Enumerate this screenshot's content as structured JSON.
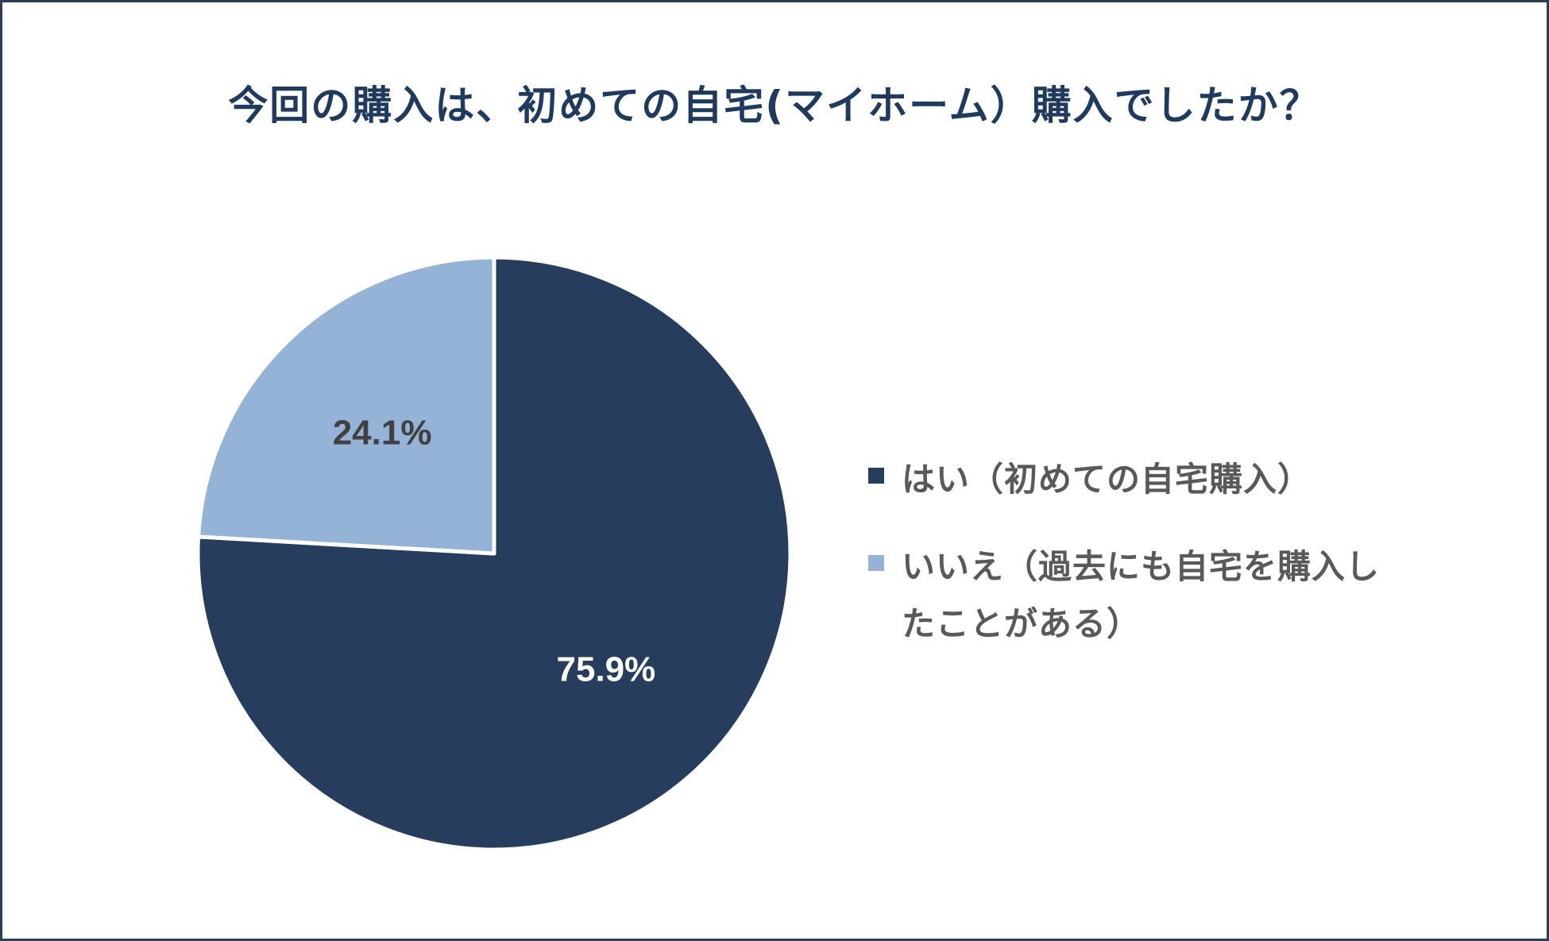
{
  "chart_data": {
    "type": "pie",
    "title": "今回の購入は、初めての自宅(マイホーム）購入でしたか？",
    "start_angle_deg": 0,
    "direction": "clockwise",
    "slices": [
      {
        "label": "はい（初めての自宅購入）",
        "value": 75.9,
        "display": "75.9%",
        "color": "#263d5e",
        "label_color": "#ffffff"
      },
      {
        "label": "いいえ（過去にも自宅を購入したことがある）",
        "value": 24.1,
        "display": "24.1%",
        "color": "#95b3d7",
        "label_color": "#404040"
      }
    ],
    "legend_position": "right"
  }
}
